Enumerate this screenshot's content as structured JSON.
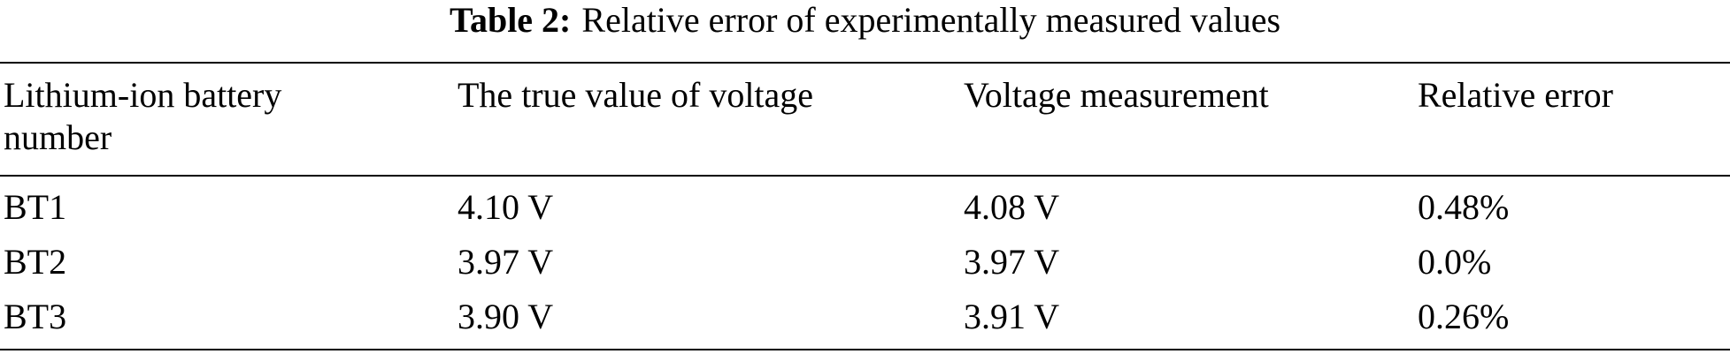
{
  "caption": {
    "label": "Table 2:",
    "text": "Relative error of experimentally measured values"
  },
  "table": {
    "headers": [
      "Lithium-ion battery number",
      "The true value of voltage",
      "Voltage measurement",
      "Relative error"
    ],
    "rows": [
      [
        "BT1",
        "4.10 V",
        "4.08 V",
        "0.48%"
      ],
      [
        "BT2",
        "3.97 V",
        "3.97 V",
        "0.0%"
      ],
      [
        "BT3",
        "3.90 V",
        "3.91 V",
        "0.26%"
      ]
    ]
  }
}
